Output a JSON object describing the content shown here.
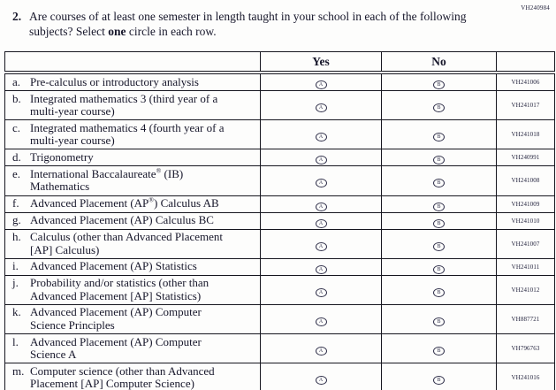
{
  "page_code": "VH240984",
  "question": {
    "number": "2.",
    "text_before": "Are courses of at least one semester in length taught in your school in each of the following subjects? Select ",
    "bold_word": "one",
    "text_after": " circle in each row."
  },
  "table": {
    "headers": {
      "yes": "Yes",
      "no": "No"
    },
    "options": {
      "yes_glyph": "A",
      "no_glyph": "B"
    },
    "rows": [
      {
        "letter": "a.",
        "label": "Pre-calculus or introductory analysis",
        "code": "VH241006"
      },
      {
        "letter": "b.",
        "label": "Integrated mathematics 3 (third year of a multi-year course)",
        "code": "VH241017"
      },
      {
        "letter": "c.",
        "label": "Integrated mathematics 4 (fourth year of a multi-year course)",
        "code": "VH241018"
      },
      {
        "letter": "d.",
        "label": "Trigonometry",
        "code": "VH240991"
      },
      {
        "letter": "e.",
        "label": "International Baccalaureate® (IB) Mathematics",
        "code": "VH241008"
      },
      {
        "letter": "f.",
        "label": "Advanced Placement (AP®) Calculus AB",
        "code": "VH241009"
      },
      {
        "letter": "g.",
        "label": "Advanced Placement (AP) Calculus BC",
        "code": "VH241010"
      },
      {
        "letter": "h.",
        "label": "Calculus (other than Advanced Placement [AP] Calculus)",
        "code": "VH241007"
      },
      {
        "letter": "i.",
        "label": "Advanced Placement (AP) Statistics",
        "code": "VH241011"
      },
      {
        "letter": "j.",
        "label": "Probability and/or statistics (other than Advanced Placement [AP] Statistics)",
        "code": "VH241012"
      },
      {
        "letter": "k.",
        "label": "Advanced Placement (AP) Computer Science Principles",
        "code": "VH887721"
      },
      {
        "letter": "l.",
        "label": "Advanced Placement (AP) Computer Science A",
        "code": "VH796763"
      },
      {
        "letter": "m.",
        "label": "Computer science (other than Advanced Placement [AP] Computer Science)",
        "code": "VH241016"
      }
    ]
  }
}
